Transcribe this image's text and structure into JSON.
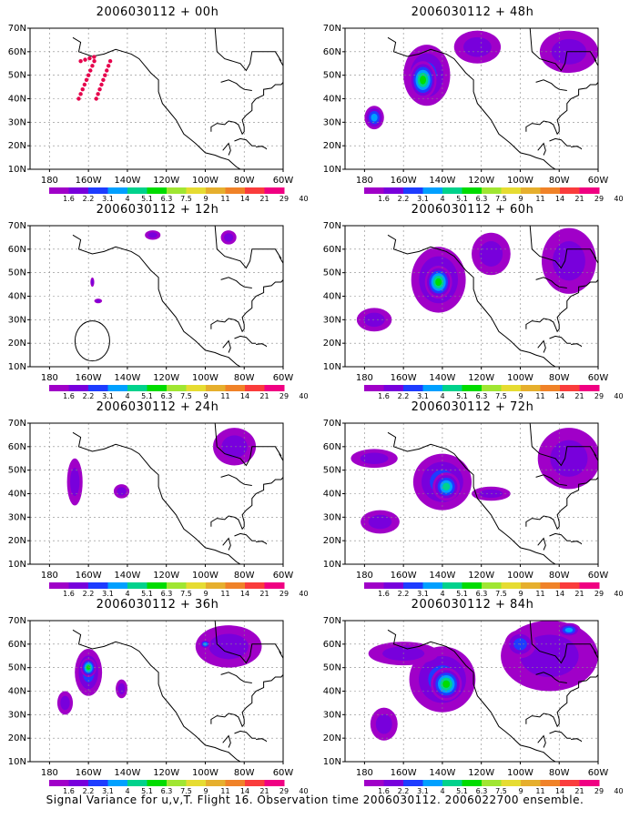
{
  "panels": [
    {
      "title": "2006030112 + 00h",
      "blobs": []
    },
    {
      "title": "2006030112 + 48h",
      "blobs": [
        {
          "lon": -148,
          "lat": 50,
          "rx": 12,
          "ry": 13,
          "level": 2
        },
        {
          "lon": -150,
          "lat": 48,
          "rx": 7,
          "ry": 8,
          "level": 5
        },
        {
          "lon": -175,
          "lat": 32,
          "rx": 5,
          "ry": 5,
          "level": 3
        },
        {
          "lon": -122,
          "lat": 62,
          "rx": 12,
          "ry": 7,
          "level": 1
        },
        {
          "lon": -75,
          "lat": 60,
          "rx": 15,
          "ry": 9,
          "level": 1
        }
      ]
    },
    {
      "title": "2006030112 + 12h",
      "blobs": [
        {
          "lon": -127,
          "lat": 66,
          "rx": 4,
          "ry": 2,
          "level": 1
        },
        {
          "lon": -88,
          "lat": 65,
          "rx": 4,
          "ry": 3,
          "level": 1
        },
        {
          "lon": -158,
          "lat": 46,
          "rx": 1,
          "ry": 2,
          "level": 1
        },
        {
          "lon": -155,
          "lat": 38,
          "rx": 2,
          "ry": 1,
          "level": 1
        }
      ]
    },
    {
      "title": "2006030112 + 60h",
      "blobs": [
        {
          "lon": -142,
          "lat": 47,
          "rx": 14,
          "ry": 14,
          "level": 2
        },
        {
          "lon": -142,
          "lat": 46,
          "rx": 7,
          "ry": 7,
          "level": 5
        },
        {
          "lon": -175,
          "lat": 30,
          "rx": 9,
          "ry": 5,
          "level": 1
        },
        {
          "lon": -75,
          "lat": 55,
          "rx": 14,
          "ry": 14,
          "level": 1
        },
        {
          "lon": -115,
          "lat": 58,
          "rx": 10,
          "ry": 9,
          "level": 1
        }
      ]
    },
    {
      "title": "2006030112 + 24h",
      "blobs": [
        {
          "lon": -167,
          "lat": 45,
          "rx": 4,
          "ry": 10,
          "level": 1
        },
        {
          "lon": -143,
          "lat": 41,
          "rx": 4,
          "ry": 3,
          "level": 1
        },
        {
          "lon": -85,
          "lat": 60,
          "rx": 11,
          "ry": 8,
          "level": 1
        }
      ]
    },
    {
      "title": "2006030112 + 72h",
      "blobs": [
        {
          "lon": -140,
          "lat": 45,
          "rx": 15,
          "ry": 12,
          "level": 2
        },
        {
          "lon": -138,
          "lat": 43,
          "rx": 7,
          "ry": 6,
          "level": 4
        },
        {
          "lon": -172,
          "lat": 28,
          "rx": 10,
          "ry": 5,
          "level": 1
        },
        {
          "lon": -175,
          "lat": 55,
          "rx": 12,
          "ry": 4,
          "level": 1
        },
        {
          "lon": -75,
          "lat": 55,
          "rx": 16,
          "ry": 13,
          "level": 1
        },
        {
          "lon": -115,
          "lat": 40,
          "rx": 10,
          "ry": 3,
          "level": 1
        }
      ]
    },
    {
      "title": "2006030112 + 36h",
      "blobs": [
        {
          "lon": -160,
          "lat": 48,
          "rx": 7,
          "ry": 10,
          "level": 2
        },
        {
          "lon": -160,
          "lat": 50,
          "rx": 4,
          "ry": 4,
          "level": 5
        },
        {
          "lon": -172,
          "lat": 35,
          "rx": 4,
          "ry": 5,
          "level": 1
        },
        {
          "lon": -143,
          "lat": 41,
          "rx": 3,
          "ry": 4,
          "level": 1
        },
        {
          "lon": -88,
          "lat": 59,
          "rx": 17,
          "ry": 9,
          "level": 1
        },
        {
          "lon": -100,
          "lat": 60,
          "rx": 3,
          "ry": 2,
          "level": 3
        }
      ]
    },
    {
      "title": "2006030112 + 84h",
      "blobs": [
        {
          "lon": -140,
          "lat": 45,
          "rx": 17,
          "ry": 14,
          "level": 2
        },
        {
          "lon": -138,
          "lat": 43,
          "rx": 8,
          "ry": 7,
          "level": 5
        },
        {
          "lon": -170,
          "lat": 26,
          "rx": 7,
          "ry": 7,
          "level": 1
        },
        {
          "lon": -160,
          "lat": 56,
          "rx": 18,
          "ry": 5,
          "level": 1
        },
        {
          "lon": -85,
          "lat": 55,
          "rx": 25,
          "ry": 15,
          "level": 1
        },
        {
          "lon": -100,
          "lat": 60,
          "rx": 8,
          "ry": 6,
          "level": 2
        },
        {
          "lon": -75,
          "lat": 66,
          "rx": 6,
          "ry": 3,
          "level": 3
        }
      ]
    }
  ],
  "xticks": [
    "180",
    "160W",
    "140W",
    "120W",
    "100W",
    "80W",
    "60W"
  ],
  "yticks": [
    "10N",
    "20N",
    "30N",
    "40N",
    "50N",
    "60N",
    "70N"
  ],
  "colorbar": {
    "labels": [
      "1.6",
      "2.2",
      "3.1",
      "4",
      "5.1",
      "6.3",
      "7.5",
      "9",
      "11",
      "14",
      "21",
      "29",
      "40"
    ],
    "colors": [
      "#a000c8",
      "#7800dc",
      "#1e3cff",
      "#00a0ff",
      "#00d28c",
      "#00dc00",
      "#a0e632",
      "#e6dc32",
      "#e6af2d",
      "#f08228",
      "#fa3c3c",
      "#f00082"
    ]
  },
  "observation_marker_color": "#e6004c",
  "footer": "Signal Variance for u,v,T. Flight 16. Observation time 2006030112. 2006022700 ensemble."
}
